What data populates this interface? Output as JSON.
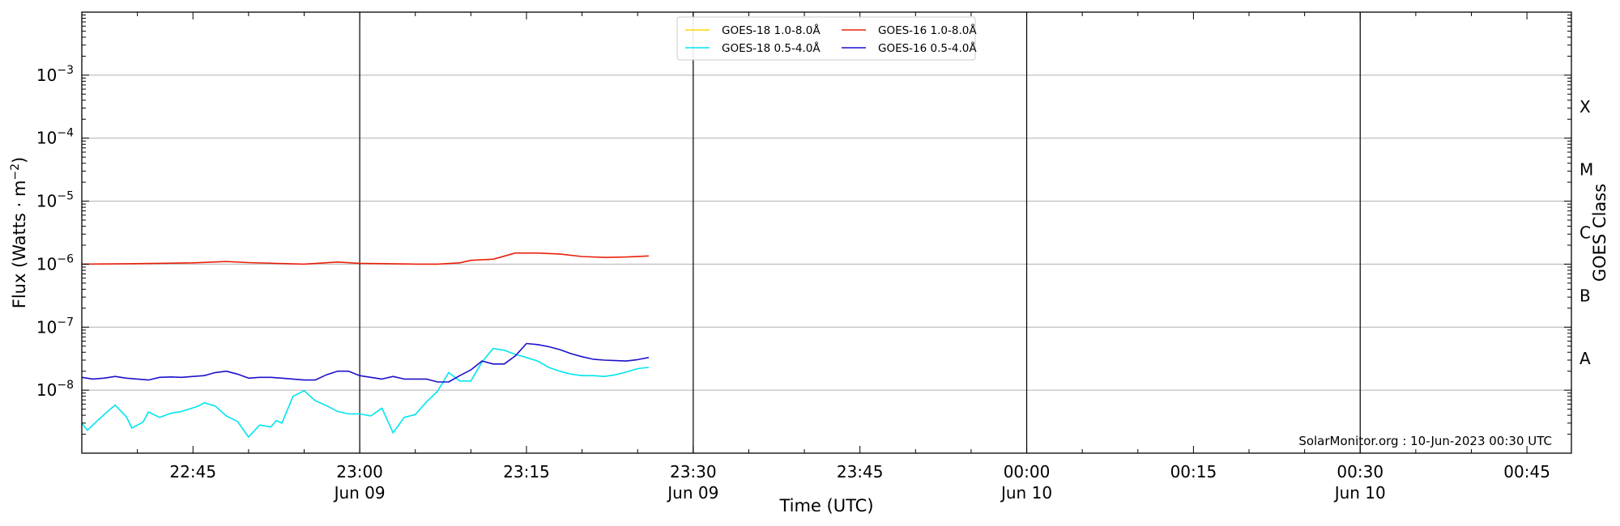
{
  "chart_data": {
    "type": "line",
    "title": "",
    "xlabel": "Time (UTC)",
    "ylabel": "Flux (Watts · m⁻²)",
    "ylabel_parts": {
      "main": "Flux (Watts · m",
      "exp": "−2",
      "tail": ")"
    },
    "y_right_label": "GOES Class",
    "y_scale": "log",
    "ylim": [
      1e-09,
      0.01
    ],
    "xlim": [
      "2023-06-09 22:35",
      "2023-06-10 00:49"
    ],
    "grid": "horizontal at each decade",
    "y_tick_labels": [
      {
        "value": 1e-08,
        "base": "10",
        "exp": "−8"
      },
      {
        "value": 1e-07,
        "base": "10",
        "exp": "−7"
      },
      {
        "value": 1e-06,
        "base": "10",
        "exp": "−6"
      },
      {
        "value": 1e-05,
        "base": "10",
        "exp": "−5"
      },
      {
        "value": 0.0001,
        "base": "10",
        "exp": "−4"
      },
      {
        "value": 0.001,
        "base": "10",
        "exp": "−3"
      }
    ],
    "x_tick_labels": [
      {
        "time": "2023-06-09 22:45",
        "line1": "22:45",
        "line2": ""
      },
      {
        "time": "2023-06-09 23:00",
        "line1": "23:00",
        "line2": "Jun 09"
      },
      {
        "time": "2023-06-09 23:15",
        "line1": "23:15",
        "line2": ""
      },
      {
        "time": "2023-06-09 23:30",
        "line1": "23:30",
        "line2": "Jun 09"
      },
      {
        "time": "2023-06-09 23:45",
        "line1": "23:45",
        "line2": ""
      },
      {
        "time": "2023-06-10 00:00",
        "line1": "00:00",
        "line2": "Jun 10"
      },
      {
        "time": "2023-06-10 00:15",
        "line1": "00:15",
        "line2": ""
      },
      {
        "time": "2023-06-10 00:30",
        "line1": "00:30",
        "line2": "Jun 10"
      },
      {
        "time": "2023-06-10 00:45",
        "line1": "00:45",
        "line2": ""
      }
    ],
    "vertical_lines": [
      "2023-06-09 23:00",
      "2023-06-09 23:30",
      "2023-06-10 00:00",
      "2023-06-10 00:30"
    ],
    "class_labels": [
      {
        "label": "A",
        "center": 3.16e-08
      },
      {
        "label": "B",
        "center": 3.16e-07
      },
      {
        "label": "C",
        "center": 3.16e-06
      },
      {
        "label": "M",
        "center": 3.16e-05
      },
      {
        "label": "X",
        "center": 0.000316
      }
    ],
    "legend": {
      "placement": "top-center",
      "columns": 2
    },
    "series": [
      {
        "name": "GOES-18 1.0-8.0Å",
        "color": "#ffd700",
        "times": [],
        "values": []
      },
      {
        "name": "GOES-16 1.0-8.0Å",
        "color": "#e8200a",
        "times": [
          "2023-06-09 22:35",
          "2023-06-09 22:40",
          "2023-06-09 22:45",
          "2023-06-09 22:48",
          "2023-06-09 22:50",
          "2023-06-09 22:55",
          "2023-06-09 22:58",
          "2023-06-09 23:00",
          "2023-06-09 23:05",
          "2023-06-09 23:07",
          "2023-06-09 23:09",
          "2023-06-09 23:10",
          "2023-06-09 23:12",
          "2023-06-09 23:14",
          "2023-06-09 23:16",
          "2023-06-09 23:18",
          "2023-06-09 23:20",
          "2023-06-09 23:22",
          "2023-06-09 23:24",
          "2023-06-09 23:26"
        ],
        "values": [
          1e-06,
          1.02e-06,
          1.05e-06,
          1.1e-06,
          1.06e-06,
          1e-06,
          1.08e-06,
          1.03e-06,
          1e-06,
          1e-06,
          1.05e-06,
          1.15e-06,
          1.2e-06,
          1.5e-06,
          1.5e-06,
          1.45e-06,
          1.32e-06,
          1.28e-06,
          1.3e-06,
          1.35e-06
        ]
      },
      {
        "name": "GOES-18 0.5-4.0Å",
        "color": "#00e5ee",
        "times": [
          "2023-06-09 22:35",
          "2023-06-09 22:35:30",
          "2023-06-09 22:36:30",
          "2023-06-09 22:37:30",
          "2023-06-09 22:38",
          "2023-06-09 22:39",
          "2023-06-09 22:39:30",
          "2023-06-09 22:40:30",
          "2023-06-09 22:41",
          "2023-06-09 22:42",
          "2023-06-09 22:43",
          "2023-06-09 22:44",
          "2023-06-09 22:45:30",
          "2023-06-09 22:46",
          "2023-06-09 22:47",
          "2023-06-09 22:48",
          "2023-06-09 22:49",
          "2023-06-09 22:49:30",
          "2023-06-09 22:50",
          "2023-06-09 22:51",
          "2023-06-09 22:52",
          "2023-06-09 22:52:30",
          "2023-06-09 22:53",
          "2023-06-09 22:54",
          "2023-06-09 22:55",
          "2023-06-09 22:56",
          "2023-06-09 22:57",
          "2023-06-09 22:58",
          "2023-06-09 22:59",
          "2023-06-09 23:00",
          "2023-06-09 23:01",
          "2023-06-09 23:02",
          "2023-06-09 23:03",
          "2023-06-09 23:04",
          "2023-06-09 23:05",
          "2023-06-09 23:06",
          "2023-06-09 23:07",
          "2023-06-09 23:08",
          "2023-06-09 23:09",
          "2023-06-09 23:10",
          "2023-06-09 23:11",
          "2023-06-09 23:12",
          "2023-06-09 23:13",
          "2023-06-09 23:14",
          "2023-06-09 23:15",
          "2023-06-09 23:16",
          "2023-06-09 23:17",
          "2023-06-09 23:18",
          "2023-06-09 23:19",
          "2023-06-09 23:20",
          "2023-06-09 23:21",
          "2023-06-09 23:22",
          "2023-06-09 23:23",
          "2023-06-09 23:24",
          "2023-06-09 23:25",
          "2023-06-09 23:26"
        ],
        "values": [
          3e-09,
          2.3e-09,
          3.4e-09,
          4.9e-09,
          5.8e-09,
          3.8e-09,
          2.5e-09,
          3.1e-09,
          4.5e-09,
          3.7e-09,
          4.3e-09,
          4.6e-09,
          5.6e-09,
          6.3e-09,
          5.6e-09,
          3.9e-09,
          3.2e-09,
          2.4e-09,
          1.8e-09,
          2.8e-09,
          2.6e-09,
          3.3e-09,
          3e-09,
          8e-09,
          9.8e-09,
          6.8e-09,
          5.7e-09,
          4.6e-09,
          4.2e-09,
          4.2e-09,
          3.9e-09,
          5.2e-09,
          2.1e-09,
          3.7e-09,
          4.1e-09,
          6.5e-09,
          9.6e-09,
          1.9e-08,
          1.4e-08,
          1.4e-08,
          2.8e-08,
          4.6e-08,
          4.3e-08,
          3.7e-08,
          3.3e-08,
          2.9e-08,
          2.3e-08,
          2e-08,
          1.8e-08,
          1.7e-08,
          1.7e-08,
          1.65e-08,
          1.75e-08,
          1.95e-08,
          2.2e-08,
          2.3e-08
        ]
      },
      {
        "name": "GOES-16 0.5-4.0Å",
        "color": "#1c10cc",
        "times": [
          "2023-06-09 22:35",
          "2023-06-09 22:36",
          "2023-06-09 22:37",
          "2023-06-09 22:38",
          "2023-06-09 22:39",
          "2023-06-09 22:40",
          "2023-06-09 22:41",
          "2023-06-09 22:42",
          "2023-06-09 22:43",
          "2023-06-09 22:44",
          "2023-06-09 22:45",
          "2023-06-09 22:46",
          "2023-06-09 22:47",
          "2023-06-09 22:48",
          "2023-06-09 22:49",
          "2023-06-09 22:50",
          "2023-06-09 22:51",
          "2023-06-09 22:52",
          "2023-06-09 22:53",
          "2023-06-09 22:54",
          "2023-06-09 22:55",
          "2023-06-09 22:56",
          "2023-06-09 22:57",
          "2023-06-09 22:58",
          "2023-06-09 22:59",
          "2023-06-09 23:00",
          "2023-06-09 23:01",
          "2023-06-09 23:02",
          "2023-06-09 23:03",
          "2023-06-09 23:04",
          "2023-06-09 23:05",
          "2023-06-09 23:06",
          "2023-06-09 23:07",
          "2023-06-09 23:08",
          "2023-06-09 23:09",
          "2023-06-09 23:10",
          "2023-06-09 23:11",
          "2023-06-09 23:12",
          "2023-06-09 23:13",
          "2023-06-09 23:14",
          "2023-06-09 23:15",
          "2023-06-09 23:16",
          "2023-06-09 23:17",
          "2023-06-09 23:18",
          "2023-06-09 23:19",
          "2023-06-09 23:20",
          "2023-06-09 23:21",
          "2023-06-09 23:22",
          "2023-06-09 23:23",
          "2023-06-09 23:24",
          "2023-06-09 23:25",
          "2023-06-09 23:26"
        ],
        "values": [
          1.6e-08,
          1.5e-08,
          1.55e-08,
          1.65e-08,
          1.55e-08,
          1.5e-08,
          1.45e-08,
          1.6e-08,
          1.62e-08,
          1.6e-08,
          1.65e-08,
          1.7e-08,
          1.9e-08,
          2e-08,
          1.8e-08,
          1.55e-08,
          1.6e-08,
          1.6e-08,
          1.55e-08,
          1.5e-08,
          1.45e-08,
          1.45e-08,
          1.75e-08,
          2e-08,
          2e-08,
          1.7e-08,
          1.6e-08,
          1.5e-08,
          1.65e-08,
          1.5e-08,
          1.5e-08,
          1.5e-08,
          1.35e-08,
          1.35e-08,
          1.7e-08,
          2.1e-08,
          2.9e-08,
          2.6e-08,
          2.6e-08,
          3.5e-08,
          5.5e-08,
          5.3e-08,
          4.9e-08,
          4.4e-08,
          3.8e-08,
          3.4e-08,
          3.1e-08,
          3e-08,
          2.95e-08,
          2.9e-08,
          3.05e-08,
          3.3e-08
        ]
      }
    ],
    "credit": "SolarMonitor.org : 10-Jun-2023 00:30 UTC"
  }
}
